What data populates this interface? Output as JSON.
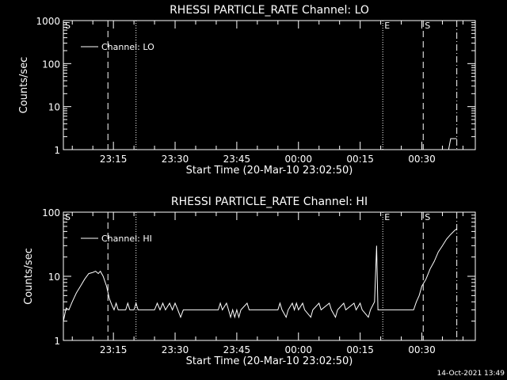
{
  "footer": {
    "timestamp": "14-Oct-2021 13:49"
  },
  "colors": {
    "background": "#000000",
    "foreground": "#ffffff"
  },
  "chart_data": [
    {
      "type": "line",
      "title": "RHESSI PARTICLE_RATE Channel: LO",
      "xlabel": "Start Time (20-Mar-10 23:02:50)",
      "ylabel": "Counts/sec",
      "x_unit": "time (HH:MM)",
      "xlim": [
        "23:02:50",
        "00:43:00"
      ],
      "x_ticks": [
        "23:15",
        "23:30",
        "23:45",
        "00:00",
        "00:15",
        "00:30"
      ],
      "y_scale": "log",
      "ylim": [
        1,
        1000
      ],
      "y_ticks": [
        "1",
        "10",
        "100",
        "1000"
      ],
      "legend": {
        "placement": "top-left",
        "entries": [
          "Channel: LO"
        ]
      },
      "markers": [
        {
          "label": "S",
          "time": "23:02:50",
          "style": "dashed"
        },
        {
          "label": "",
          "time": "23:13:40",
          "style": "dashed"
        },
        {
          "label": "",
          "time": "23:20:30",
          "style": "dotted"
        },
        {
          "label": "E",
          "time": "00:20:30",
          "style": "dotted"
        },
        {
          "label": "S",
          "time": "00:30:20",
          "style": "dashed"
        },
        {
          "label": "",
          "time": "00:38:30",
          "style": "dash-dot"
        }
      ],
      "series": [
        {
          "values": [
            [
              "00:36:30",
              1
            ],
            [
              "00:37:00",
              1.8
            ],
            [
              "00:38:30",
              1.8
            ]
          ]
        }
      ]
    },
    {
      "type": "line",
      "title": "RHESSI PARTICLE_RATE Channel: HI",
      "xlabel": "Start Time (20-Mar-10 23:02:50)",
      "ylabel": "Counts/sec",
      "x_unit": "time (HH:MM)",
      "xlim": [
        "23:02:50",
        "00:43:00"
      ],
      "x_ticks": [
        "23:15",
        "23:30",
        "23:45",
        "00:00",
        "00:15",
        "00:30"
      ],
      "y_scale": "log",
      "ylim": [
        1,
        100
      ],
      "y_ticks": [
        "1",
        "10",
        "100"
      ],
      "legend": {
        "placement": "top-left",
        "entries": [
          "Channel: HI"
        ]
      },
      "markers": [
        {
          "label": "S",
          "time": "23:02:50",
          "style": "dashed"
        },
        {
          "label": "",
          "time": "23:13:40",
          "style": "dashed"
        },
        {
          "label": "",
          "time": "23:20:30",
          "style": "dotted"
        },
        {
          "label": "E",
          "time": "00:20:30",
          "style": "dotted"
        },
        {
          "label": "S",
          "time": "00:30:20",
          "style": "dashed"
        },
        {
          "label": "",
          "time": "00:38:30",
          "style": "dash-dot"
        }
      ],
      "series": [
        {
          "values": [
            [
              "23:02:50",
              2.0
            ],
            [
              "23:03:30",
              3.2
            ],
            [
              "23:04:10",
              3.0
            ],
            [
              "23:05:00",
              4.0
            ],
            [
              "23:06:00",
              5.5
            ],
            [
              "23:07:00",
              7.0
            ],
            [
              "23:08:00",
              9.0
            ],
            [
              "23:09:00",
              11.0
            ],
            [
              "23:10:00",
              11.5
            ],
            [
              "23:10:40",
              12.0
            ],
            [
              "23:11:20",
              11.0
            ],
            [
              "23:11:50",
              12.0
            ],
            [
              "23:12:30",
              10.0
            ],
            [
              "23:13:20",
              7.0
            ],
            [
              "23:14:00",
              4.5
            ],
            [
              "23:14:40",
              3.5
            ],
            [
              "23:15:10",
              3.0
            ],
            [
              "23:15:40",
              3.8
            ],
            [
              "23:16:10",
              3.0
            ],
            [
              "23:18:00",
              3.0
            ],
            [
              "23:18:30",
              3.8
            ],
            [
              "23:19:00",
              3.0
            ],
            [
              "23:20:00",
              3.0
            ],
            [
              "23:20:30",
              3.8
            ],
            [
              "23:21:00",
              3.0
            ],
            [
              "23:25:00",
              3.0
            ],
            [
              "23:25:40",
              3.8
            ],
            [
              "23:26:20",
              3.0
            ],
            [
              "23:27:00",
              3.8
            ],
            [
              "23:27:40",
              3.0
            ],
            [
              "23:28:40",
              3.8
            ],
            [
              "23:29:20",
              3.0
            ],
            [
              "23:30:00",
              3.8
            ],
            [
              "23:30:40",
              3.0
            ],
            [
              "23:31:20",
              2.3
            ],
            [
              "23:32:00",
              3.0
            ],
            [
              "23:40:30",
              3.0
            ],
            [
              "23:41:00",
              3.8
            ],
            [
              "23:41:30",
              3.0
            ],
            [
              "23:42:30",
              3.8
            ],
            [
              "23:43:00",
              3.0
            ],
            [
              "23:43:30",
              2.3
            ],
            [
              "23:44:00",
              3.0
            ],
            [
              "23:44:30",
              2.3
            ],
            [
              "23:45:00",
              3.0
            ],
            [
              "23:45:30",
              2.3
            ],
            [
              "23:46:00",
              3.0
            ],
            [
              "23:47:30",
              3.8
            ],
            [
              "23:48:00",
              3.0
            ],
            [
              "23:55:00",
              3.0
            ],
            [
              "23:55:30",
              3.8
            ],
            [
              "23:56:00",
              3.0
            ],
            [
              "23:57:00",
              2.3
            ],
            [
              "23:57:30",
              3.0
            ],
            [
              "23:58:30",
              3.8
            ],
            [
              "23:59:00",
              3.0
            ],
            [
              "23:59:30",
              3.8
            ],
            [
              "00:00:00",
              3.0
            ],
            [
              "00:01:00",
              3.8
            ],
            [
              "00:01:30",
              3.0
            ],
            [
              "00:03:00",
              2.3
            ],
            [
              "00:03:30",
              3.0
            ],
            [
              "00:05:00",
              3.8
            ],
            [
              "00:05:30",
              3.0
            ],
            [
              "00:07:30",
              3.8
            ],
            [
              "00:08:00",
              3.0
            ],
            [
              "00:09:00",
              2.3
            ],
            [
              "00:09:30",
              3.0
            ],
            [
              "00:11:00",
              3.8
            ],
            [
              "00:11:30",
              3.0
            ],
            [
              "00:13:30",
              3.8
            ],
            [
              "00:14:00",
              3.0
            ],
            [
              "00:15:00",
              3.8
            ],
            [
              "00:15:30",
              3.0
            ],
            [
              "00:17:00",
              2.3
            ],
            [
              "00:17:30",
              3.0
            ],
            [
              "00:18:30",
              4.0
            ],
            [
              "00:19:00",
              30.0
            ],
            [
              "00:19:20",
              3.0
            ],
            [
              "00:20:00",
              3.0
            ],
            [
              "00:28:00",
              3.0
            ],
            [
              "00:28:40",
              4.0
            ],
            [
              "00:29:20",
              5.0
            ],
            [
              "00:30:00",
              7.0
            ],
            [
              "00:31:00",
              9.0
            ],
            [
              "00:32:00",
              13.0
            ],
            [
              "00:33:00",
              17.0
            ],
            [
              "00:34:00",
              24.0
            ],
            [
              "00:35:00",
              30.0
            ],
            [
              "00:36:00",
              38.0
            ],
            [
              "00:37:00",
              45.0
            ],
            [
              "00:38:00",
              52.0
            ],
            [
              "00:38:30",
              55.0
            ]
          ]
        }
      ]
    }
  ]
}
